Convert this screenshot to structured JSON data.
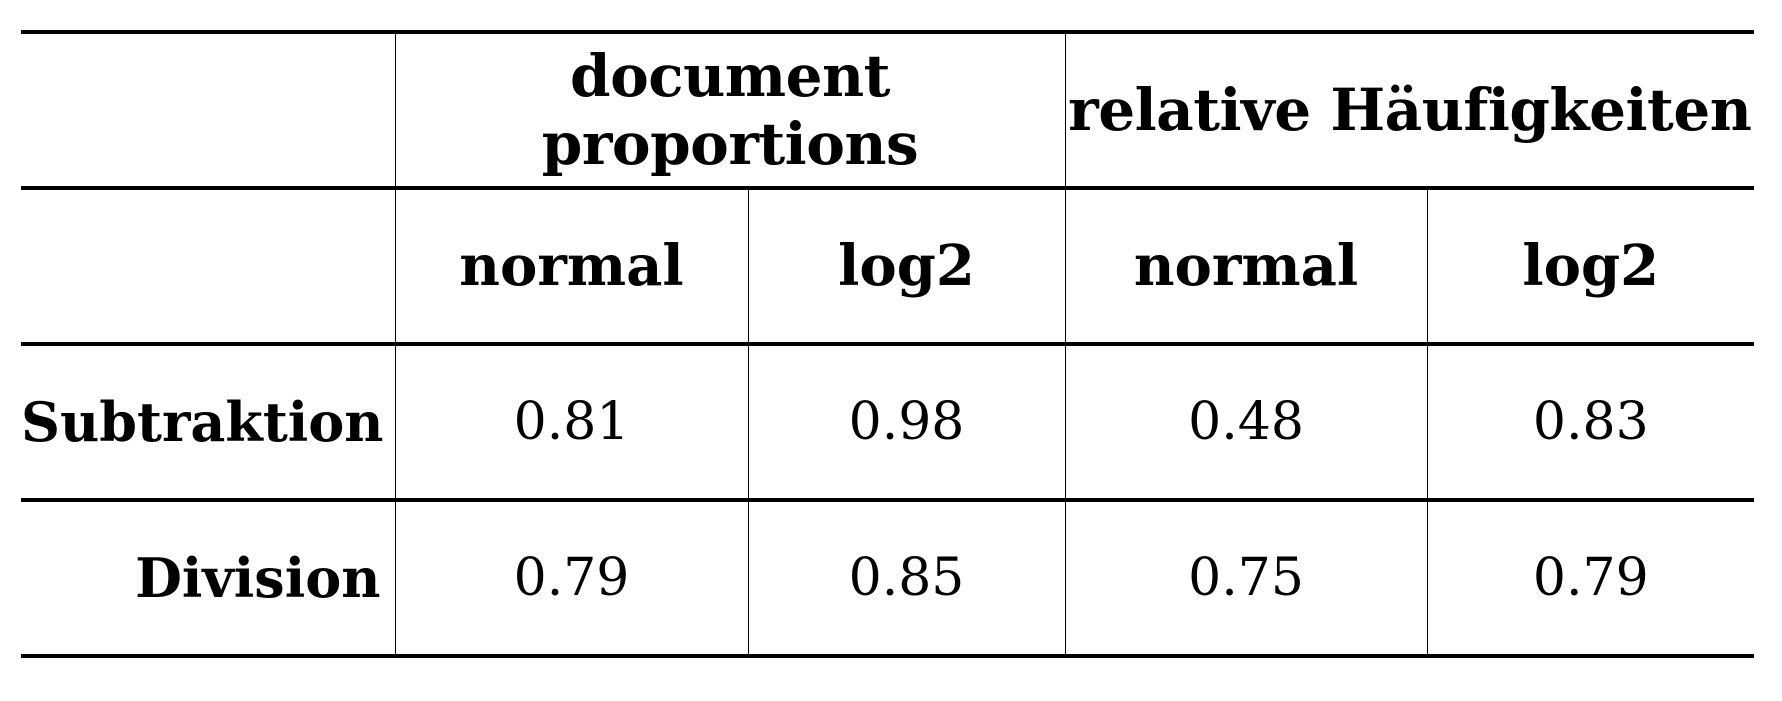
{
  "table": {
    "group_headers": [
      "document proportions",
      "relative Häufigkeiten"
    ],
    "sub_headers": [
      "normal",
      "log2",
      "normal",
      "log2"
    ],
    "rows": [
      {
        "label": "Subtraktion",
        "values": [
          "0.81",
          "0.98",
          "0.48",
          "0.83"
        ]
      },
      {
        "label": "Division",
        "values": [
          "0.79",
          "0.85",
          "0.75",
          "0.79"
        ]
      }
    ]
  }
}
